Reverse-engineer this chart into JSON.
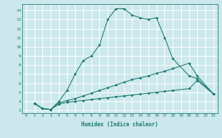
{
  "xlabel": "Humidex (Indice chaleur)",
  "bg_color": "#cce8ec",
  "grid_color": "#ffffff",
  "line_color": "#1a7a6e",
  "xlim": [
    -0.5,
    23.5
  ],
  "ylim": [
    2.7,
    14.7
  ],
  "xticks": [
    0,
    1,
    2,
    3,
    4,
    5,
    6,
    7,
    8,
    9,
    10,
    11,
    12,
    13,
    14,
    15,
    16,
    17,
    18,
    19,
    20,
    21,
    22,
    23
  ],
  "yticks": [
    3,
    4,
    5,
    6,
    7,
    8,
    9,
    10,
    11,
    12,
    13,
    14
  ],
  "series": [
    {
      "x": [
        1,
        2,
        3,
        4,
        5,
        6,
        7,
        8,
        9,
        10,
        11,
        12,
        13,
        14,
        15,
        16,
        17,
        18,
        20,
        21,
        23
      ],
      "y": [
        3.8,
        3.2,
        3.1,
        4.0,
        5.2,
        7.0,
        8.5,
        9.0,
        10.2,
        13.0,
        14.2,
        14.2,
        13.5,
        13.2,
        13.0,
        13.2,
        11.0,
        8.7,
        6.8,
        6.5,
        4.8
      ]
    },
    {
      "x": [
        1,
        2,
        3,
        4,
        5,
        6,
        7,
        8,
        9,
        10,
        11,
        12,
        13,
        14,
        15,
        16,
        17,
        18,
        20,
        21,
        23
      ],
      "y": [
        3.8,
        3.2,
        3.1,
        3.8,
        4.1,
        4.3,
        4.6,
        4.9,
        5.2,
        5.5,
        5.8,
        6.1,
        6.4,
        6.6,
        6.8,
        7.1,
        7.3,
        7.6,
        8.2,
        6.8,
        4.8
      ]
    },
    {
      "x": [
        1,
        2,
        3,
        4,
        5,
        6,
        7,
        8,
        9,
        10,
        11,
        12,
        13,
        14,
        15,
        16,
        17,
        18,
        20,
        21,
        23
      ],
      "y": [
        3.8,
        3.2,
        3.1,
        3.7,
        3.9,
        4.0,
        4.1,
        4.2,
        4.3,
        4.4,
        4.5,
        4.6,
        4.7,
        4.8,
        4.9,
        5.0,
        5.1,
        5.2,
        5.4,
        6.3,
        4.8
      ]
    }
  ]
}
